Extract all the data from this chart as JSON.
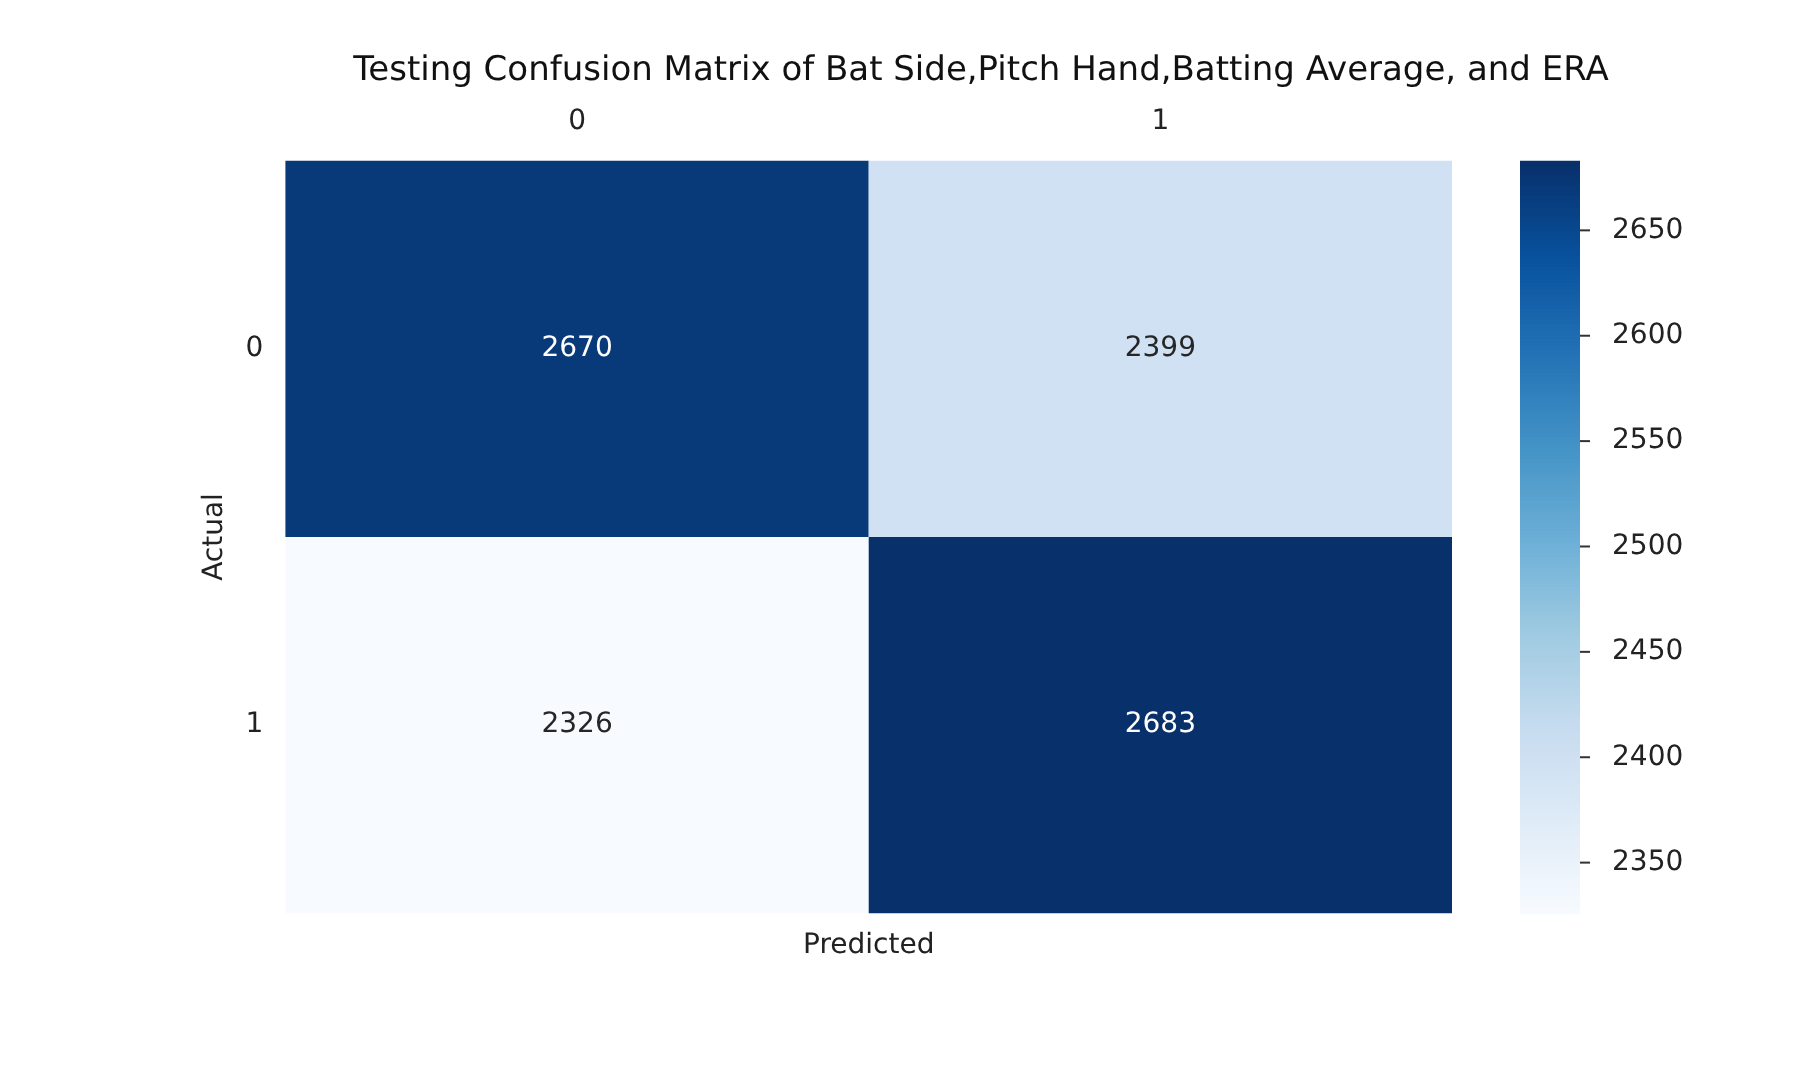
{
  "chart_data": {
    "type": "heatmap",
    "title": "Testing Confusion Matrix of Bat Side,Pitch Hand,Batting Average, and ERA",
    "xlabel": "Predicted",
    "ylabel": "Actual",
    "categories": [
      "0",
      "1"
    ],
    "y_categories": [
      "0",
      "1"
    ],
    "cells": [
      [
        2670,
        2399
      ],
      [
        2326,
        2683
      ]
    ],
    "clim": [
      2326,
      2683
    ],
    "cticks": [
      2350,
      2400,
      2450,
      2500,
      2550,
      2600,
      2650
    ],
    "data_labels": true
  }
}
